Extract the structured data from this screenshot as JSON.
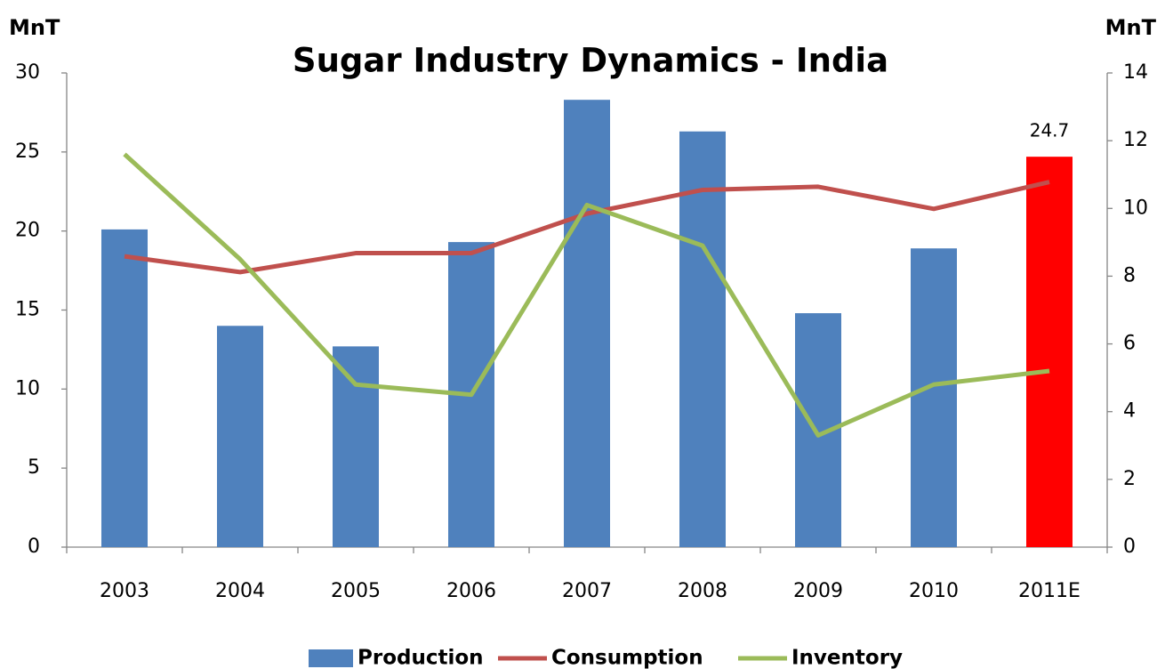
{
  "chart_data": {
    "type": "bar_line",
    "title": "Sugar Industry Dynamics - India",
    "y_label": "MnT",
    "y2_label": "MnT",
    "categories": [
      "2003",
      "2004",
      "2005",
      "2006",
      "2007",
      "2008",
      "2009",
      "2010",
      "2011E"
    ],
    "series": [
      {
        "name": "Production",
        "type": "bar",
        "color": "#4f81bd",
        "colors": [
          "#4f81bd",
          "#4f81bd",
          "#4f81bd",
          "#4f81bd",
          "#4f81bd",
          "#4f81bd",
          "#4f81bd",
          "#4f81bd",
          "#ff0000"
        ],
        "values": [
          20.1,
          14.0,
          12.7,
          19.3,
          28.3,
          26.3,
          14.8,
          18.9,
          24.7
        ],
        "value_labels": [
          null,
          null,
          null,
          null,
          null,
          null,
          null,
          null,
          "24.7"
        ]
      },
      {
        "name": "Consumption",
        "type": "line",
        "color": "#c0504d",
        "values": [
          18.4,
          17.4,
          18.6,
          18.6,
          21.1,
          22.6,
          22.8,
          21.4,
          23.1
        ]
      },
      {
        "name": "Inventory",
        "type": "line",
        "axis": "y2",
        "color": "#9bbb59",
        "values": [
          11.6,
          8.5,
          4.8,
          4.5,
          10.1,
          8.9,
          3.3,
          4.8,
          5.2
        ]
      }
    ],
    "ylim": [
      0,
      30
    ],
    "yticks": [
      0,
      5,
      10,
      15,
      20,
      25,
      30
    ],
    "y2lim": [
      0,
      14
    ],
    "y2ticks": [
      0,
      2,
      4,
      6,
      8,
      10,
      12,
      14
    ],
    "legend": "bottom"
  }
}
